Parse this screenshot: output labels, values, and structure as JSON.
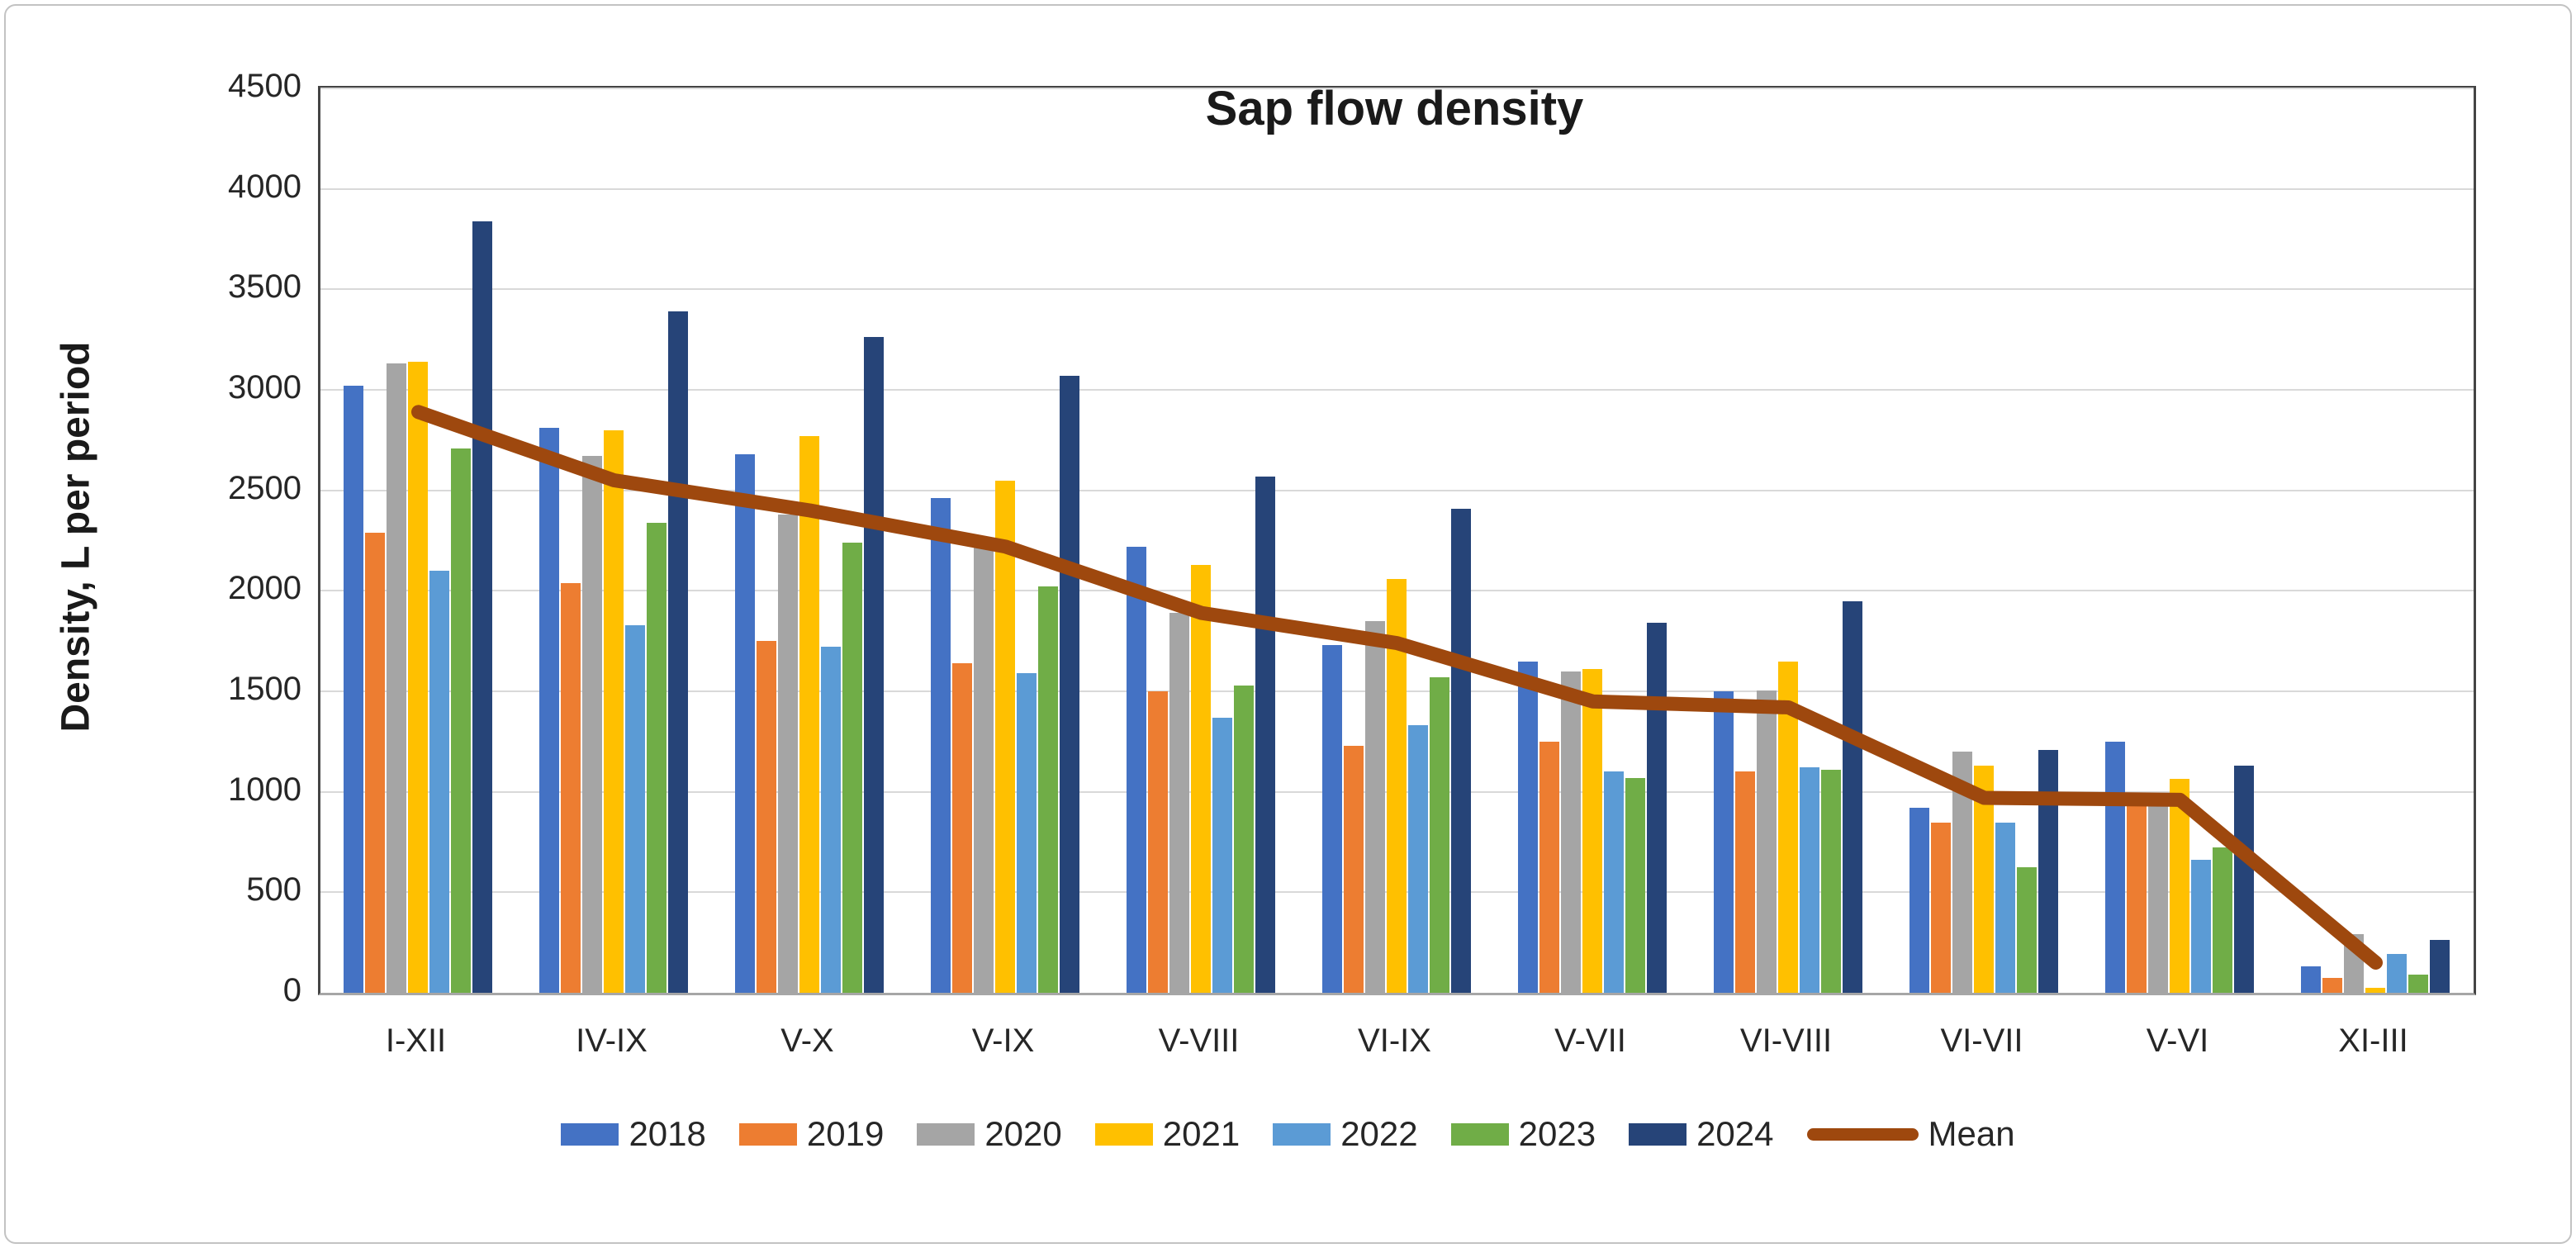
{
  "chart_data": {
    "type": "bar",
    "title": "Sap flow density",
    "xlabel": "",
    "ylabel": "Density, L per period",
    "ylim": [
      0,
      4500
    ],
    "yticks": [
      0,
      500,
      1000,
      1500,
      2000,
      2500,
      3000,
      3500,
      4000,
      4500
    ],
    "grid": true,
    "legend_position": "bottom",
    "categories": [
      "I-XII",
      "IV-IX",
      "V-X",
      "V-IX",
      "V-VIII",
      "VI-IX",
      "V-VII",
      "VI-VIII",
      "VI-VII",
      "V-VI",
      "XI-III"
    ],
    "series": [
      {
        "name": "2018",
        "color": "#4472C4",
        "values": [
          3020,
          2810,
          2680,
          2460,
          2220,
          1730,
          1650,
          1500,
          920,
          1250,
          130
        ]
      },
      {
        "name": "2019",
        "color": "#ED7D31",
        "values": [
          2290,
          2040,
          1750,
          1640,
          1500,
          1230,
          1250,
          1100,
          845,
          950,
          75
        ]
      },
      {
        "name": "2020",
        "color": "#A5A5A5",
        "values": [
          3130,
          2670,
          2380,
          2230,
          1890,
          1850,
          1600,
          1505,
          1200,
          950,
          290
        ]
      },
      {
        "name": "2021",
        "color": "#FFC000",
        "values": [
          3140,
          2800,
          2770,
          2550,
          2130,
          2060,
          1610,
          1650,
          1130,
          1065,
          25
        ]
      },
      {
        "name": "2022",
        "color": "#5B9BD5",
        "values": [
          2100,
          1830,
          1720,
          1590,
          1370,
          1330,
          1100,
          1120,
          845,
          660,
          195
        ]
      },
      {
        "name": "2023",
        "color": "#70AD47",
        "values": [
          2710,
          2340,
          2240,
          2020,
          1530,
          1570,
          1070,
          1110,
          625,
          725,
          90
        ]
      },
      {
        "name": "2024",
        "color": "#264478",
        "values": [
          3840,
          3390,
          3265,
          3070,
          2570,
          2410,
          1840,
          1950,
          1210,
          1130,
          265
        ]
      }
    ],
    "line_series": {
      "name": "Mean",
      "color": "#9E480E",
      "values": [
        2890,
        2550,
        2400,
        2220,
        1890,
        1740,
        1450,
        1420,
        970,
        960,
        150
      ]
    },
    "colors": {
      "gridline": "#D9D9D9",
      "axis": "#444444",
      "bottom_axis": "#A6A6A6",
      "frame_border": "#C3C3C3",
      "text": "#262626"
    }
  }
}
